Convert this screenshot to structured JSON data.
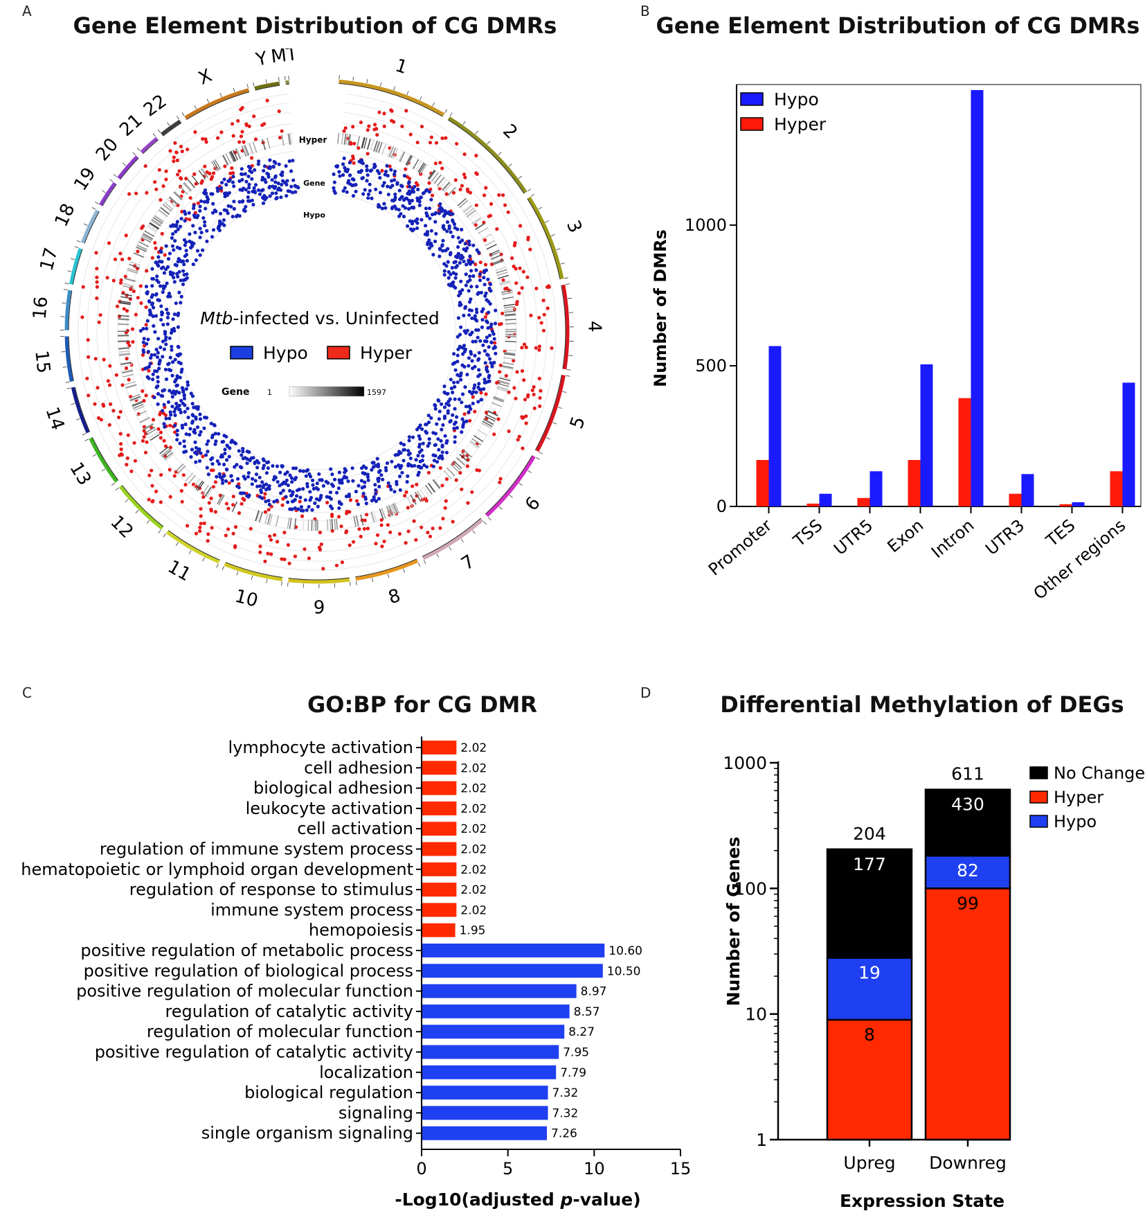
{
  "panel_labels": {
    "a": "A",
    "b": "B",
    "c": "C",
    "d": "D"
  },
  "chart_data": [
    {
      "panel": "A",
      "type": "scatter",
      "subtype": "circos",
      "title": "Gene Element Distribution of CG DMRs",
      "center_title_italic": "Mtb",
      "center_title_rest": "-infected vs. Uninfected",
      "legend": [
        {
          "label": "Hypo",
          "color": "#1b3fe0"
        },
        {
          "label": "Hyper",
          "color": "#ee2a1b"
        }
      ],
      "gene_scale": {
        "label": "Gene",
        "min": "1",
        "max": "1597"
      },
      "track_labels": {
        "hyper": "Hyper",
        "gene": "Gene",
        "hypo": "Hypo"
      },
      "chromosomes": [
        {
          "name": "1",
          "color": "#c8961e"
        },
        {
          "name": "2",
          "color": "#8c8c1e"
        },
        {
          "name": "3",
          "color": "#9a9a14"
        },
        {
          "name": "4",
          "color": "#d8141e"
        },
        {
          "name": "5",
          "color": "#d8141e"
        },
        {
          "name": "6",
          "color": "#d22dc8"
        },
        {
          "name": "7",
          "color": "#d0a8b4"
        },
        {
          "name": "8",
          "color": "#e6961e"
        },
        {
          "name": "9",
          "color": "#d2c31e"
        },
        {
          "name": "10",
          "color": "#cfc81e"
        },
        {
          "name": "11",
          "color": "#cfd228"
        },
        {
          "name": "12",
          "color": "#9ad21e"
        },
        {
          "name": "13",
          "color": "#3cb41e"
        },
        {
          "name": "14",
          "color": "#141e8c"
        },
        {
          "name": "15",
          "color": "#1e5ab4"
        },
        {
          "name": "16",
          "color": "#3c8cc8"
        },
        {
          "name": "17",
          "color": "#28c3d2"
        },
        {
          "name": "18",
          "color": "#8cb4d2"
        },
        {
          "name": "19",
          "color": "#8c3cc8"
        },
        {
          "name": "20",
          "color": "#8c3cc8"
        },
        {
          "name": "21",
          "color": "#9646c8"
        },
        {
          "name": "22",
          "color": "#3c3c3c"
        },
        {
          "name": "X",
          "color": "#c8781e"
        },
        {
          "name": "Y",
          "color": "#6e6e14"
        },
        {
          "name": "MT",
          "color": "#8c8c3c"
        }
      ]
    },
    {
      "panel": "B",
      "type": "bar",
      "title": "Gene Element Distribution of CG DMRs",
      "ylabel": "Number of DMRs",
      "ylim": [
        0,
        1480
      ],
      "yticks": [
        0,
        500,
        1000
      ],
      "categories": [
        "Promoter",
        "TSS",
        "UTR5",
        "Exon",
        "Intron",
        "UTR3",
        "TES",
        "Other regions"
      ],
      "series": [
        {
          "name": "Hyper",
          "color": "#ff1a0a",
          "values": [
            165,
            10,
            30,
            165,
            385,
            45,
            8,
            125
          ]
        },
        {
          "name": "Hypo",
          "color": "#1a1aff",
          "values": [
            570,
            45,
            125,
            505,
            1480,
            115,
            15,
            440
          ]
        }
      ],
      "legend_order": [
        "Hypo",
        "Hyper"
      ]
    },
    {
      "panel": "C",
      "type": "bar",
      "orientation": "horizontal",
      "title": "GO:BP for CG DMR",
      "xlabel_prefix": "-Log10(adjusted ",
      "xlabel_italic": "p",
      "xlabel_suffix": "-value)",
      "xlim": [
        0,
        15
      ],
      "xticks": [
        0,
        5,
        10,
        15
      ],
      "categories": [
        "lymphocyte activation",
        "cell adhesion",
        "biological adhesion",
        "leukocyte activation",
        "cell activation",
        "regulation of immune system process",
        "hematopoietic or lymphoid organ development",
        "regulation of response to stimulus",
        "immune system process",
        "hemopoiesis",
        "positive regulation of metabolic process",
        "positive regulation of biological process",
        "positive regulation of molecular function",
        "regulation of catalytic activity",
        "regulation of molecular function",
        "positive regulation of catalytic activity",
        "localization",
        "biological regulation",
        "signaling",
        "single organism signaling"
      ],
      "values": [
        2.02,
        2.02,
        2.02,
        2.02,
        2.02,
        2.02,
        2.02,
        2.02,
        2.02,
        1.95,
        10.6,
        10.5,
        8.97,
        8.57,
        8.27,
        7.95,
        7.79,
        7.32,
        7.32,
        7.26
      ],
      "value_labels": [
        "2.02",
        "2.02",
        "2.02",
        "2.02",
        "2.02",
        "2.02",
        "2.02",
        "2.02",
        "2.02",
        "1.95",
        "10.60",
        "10.50",
        "8.97",
        "8.57",
        "8.27",
        "7.95",
        "7.79",
        "7.32",
        "7.32",
        "7.26"
      ],
      "colors": {
        "hyper": "#ff2a00",
        "hypo": "#1f40f0"
      },
      "hyper_count": 10
    },
    {
      "panel": "D",
      "type": "bar",
      "stacked": true,
      "yscale": "log",
      "title": "Differential Methylation of DEGs",
      "xlabel": "Expression State",
      "ylabel": "Number of Genes",
      "ylim": [
        1,
        1000
      ],
      "yticks": [
        "1",
        "10",
        "100",
        "1000"
      ],
      "categories": [
        "Upreg",
        "Downreg"
      ],
      "totals": [
        "204",
        "611"
      ],
      "series": [
        {
          "name": "Hyper",
          "color": "#ff2a00",
          "values": [
            8,
            99
          ],
          "labels": [
            "8",
            "99"
          ]
        },
        {
          "name": "Hypo",
          "color": "#1f40f0",
          "values": [
            19,
            82
          ],
          "labels": [
            "19",
            "82"
          ]
        },
        {
          "name": "No Change",
          "color": "#000000",
          "values": [
            177,
            430
          ],
          "labels": [
            "177",
            "430"
          ]
        }
      ],
      "legend_order": [
        "No Change",
        "Hyper",
        "Hypo"
      ]
    }
  ]
}
